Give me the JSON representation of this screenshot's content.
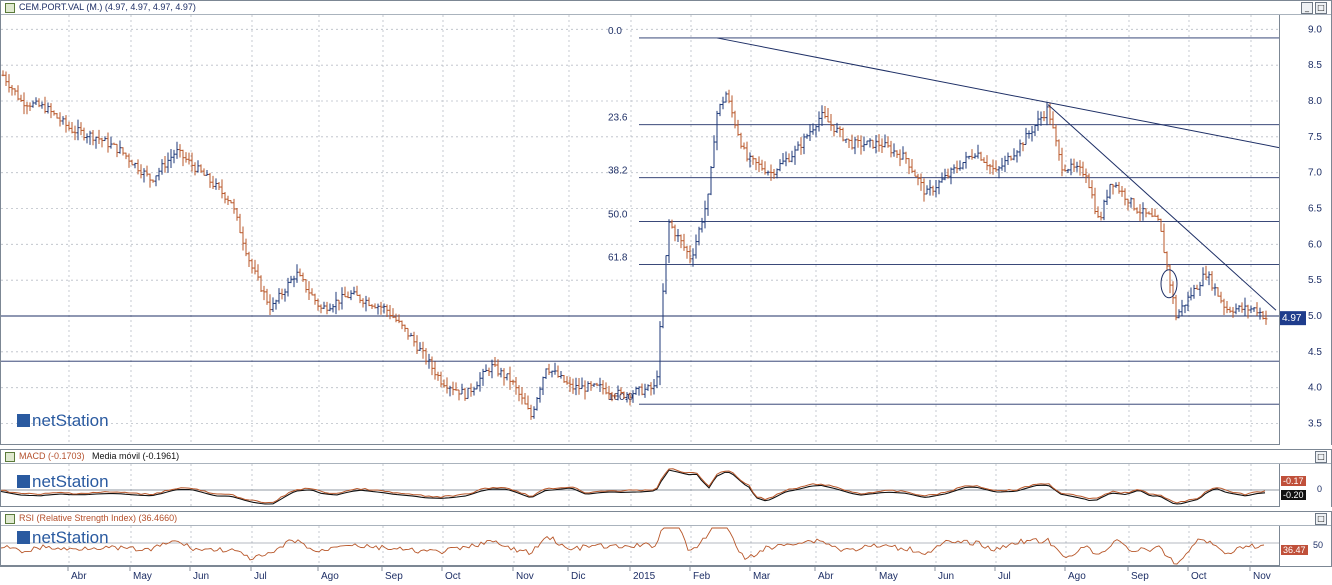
{
  "main_panel": {
    "title": "CEM.PORT.VAL (M.) (4.97, 4.97, 4.97, 4.97)",
    "y_ticks": [
      "9.0",
      "8.5",
      "8.0",
      "7.5",
      "7.0",
      "6.5",
      "6.0",
      "5.5",
      "5.0",
      "4.5",
      "4.0",
      "3.5"
    ],
    "last_price": "4.97",
    "fib_labels": [
      "0.0",
      "23.6",
      "38.2",
      "50.0",
      "61.8",
      "100.0"
    ],
    "watermark": "netStation",
    "minimize_icon": "_",
    "maximize_icon": "□"
  },
  "macd_panel": {
    "title": "MACD (-0.1703)",
    "ma_label": "Media móvil (-0.1961)",
    "y_tick": "0",
    "macd_value": "-0.17",
    "signal_value": "-0.20",
    "watermark": "netStation"
  },
  "rsi_panel": {
    "title": "RSI (Relative Strength Index) (36.4660)",
    "y_tick": "50",
    "rsi_value": "36.47",
    "watermark": "netStation"
  },
  "x_axis": {
    "labels": [
      "Abr",
      "May",
      "Jun",
      "Jul",
      "Ago",
      "Sep",
      "Oct",
      "Nov",
      "Dic",
      "2015",
      "Feb",
      "Mar",
      "Abr",
      "May",
      "Jun",
      "Jul",
      "Ago",
      "Sep",
      "Oct",
      "Nov"
    ]
  },
  "colors": {
    "up": "#1f3a7a",
    "down": "#b8572a",
    "line": "#1e2f66",
    "grid": "#b9bec6",
    "highlight_bg": "#1e3c8c",
    "macd_bg": "#c0503a",
    "signal_bg": "#111111",
    "rsi_bg": "#c0503a"
  },
  "chart_data": {
    "type": "bar",
    "title": "CEM.PORT.VAL (M.)",
    "ylim": [
      3.2,
      9.2
    ],
    "grid": true,
    "price_path": [
      [
        0,
        8.4
      ],
      [
        20,
        8.0
      ],
      [
        45,
        7.9
      ],
      [
        70,
        7.6
      ],
      [
        95,
        7.5
      ],
      [
        120,
        7.3
      ],
      [
        150,
        6.9
      ],
      [
        175,
        7.3
      ],
      [
        200,
        7.0
      ],
      [
        230,
        6.6
      ],
      [
        250,
        5.7
      ],
      [
        270,
        5.1
      ],
      [
        295,
        5.6
      ],
      [
        320,
        5.1
      ],
      [
        350,
        5.3
      ],
      [
        385,
        5.1
      ],
      [
        410,
        4.7
      ],
      [
        440,
        4.1
      ],
      [
        465,
        3.9
      ],
      [
        490,
        4.3
      ],
      [
        510,
        4.1
      ],
      [
        530,
        3.6
      ],
      [
        545,
        4.3
      ],
      [
        570,
        4.0
      ],
      [
        600,
        4.0
      ],
      [
        620,
        3.9
      ],
      [
        655,
        4.0
      ],
      [
        660,
        5.0
      ],
      [
        668,
        6.3
      ],
      [
        690,
        5.8
      ],
      [
        708,
        6.7
      ],
      [
        715,
        7.8
      ],
      [
        725,
        8.1
      ],
      [
        745,
        7.2
      ],
      [
        770,
        7.0
      ],
      [
        795,
        7.3
      ],
      [
        820,
        7.8
      ],
      [
        850,
        7.4
      ],
      [
        880,
        7.4
      ],
      [
        905,
        7.2
      ],
      [
        925,
        6.7
      ],
      [
        950,
        7.0
      ],
      [
        975,
        7.3
      ],
      [
        995,
        7.0
      ],
      [
        1020,
        7.4
      ],
      [
        1047,
        7.9
      ],
      [
        1060,
        7.1
      ],
      [
        1085,
        7.0
      ],
      [
        1098,
        6.3
      ],
      [
        1110,
        6.9
      ],
      [
        1135,
        6.5
      ],
      [
        1158,
        6.3
      ],
      [
        1175,
        5.0
      ],
      [
        1190,
        5.3
      ],
      [
        1205,
        5.6
      ],
      [
        1225,
        5.1
      ],
      [
        1255,
        5.1
      ],
      [
        1265,
        4.97
      ]
    ],
    "fibonacci": [
      {
        "label": "0.0",
        "value": 8.88
      },
      {
        "label": "23.6",
        "value": 7.67
      },
      {
        "label": "38.2",
        "value": 6.93
      },
      {
        "label": "50.0",
        "value": 6.32
      },
      {
        "label": "61.8",
        "value": 5.72
      },
      {
        "label": "100.0",
        "value": 3.77
      }
    ],
    "horizontal_levels": [
      5.0,
      4.37
    ],
    "last_value": 4.97
  }
}
